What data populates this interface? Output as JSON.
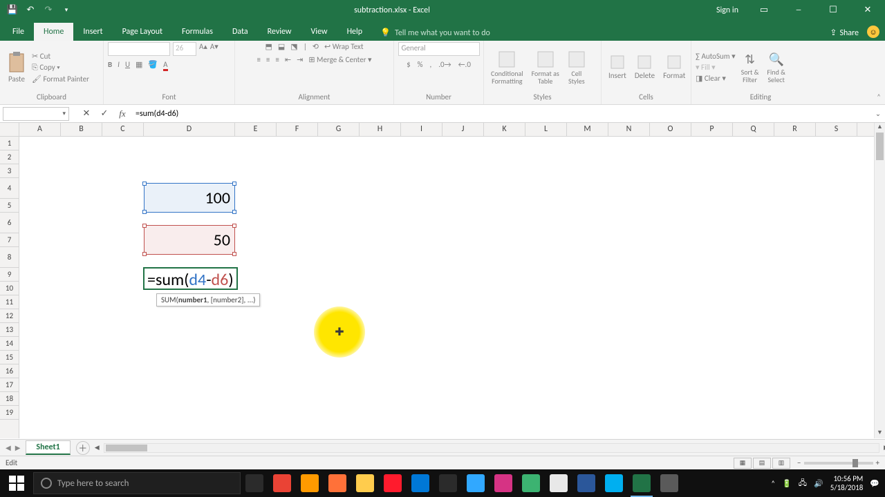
{
  "window": {
    "filename": "subtraction.xlsx",
    "appname": "Excel",
    "signin": "Sign in"
  },
  "ribbon_tabs": {
    "file": "File",
    "items": [
      "Home",
      "Insert",
      "Page Layout",
      "Formulas",
      "Data",
      "Review",
      "View",
      "Help"
    ],
    "active": "Home",
    "tell_me": "Tell me what you want to do",
    "share": "Share"
  },
  "ribbon": {
    "clipboard": {
      "paste": "Paste",
      "cut": "Cut",
      "copy": "Copy",
      "format_painter": "Format Painter",
      "label": "Clipboard"
    },
    "font": {
      "family": "",
      "size": "26",
      "label": "Font"
    },
    "alignment": {
      "wrap": "Wrap Text",
      "merge": "Merge & Center",
      "label": "Alignment"
    },
    "number": {
      "format": "General",
      "label": "Number"
    },
    "styles": {
      "cond": "Conditional Formatting",
      "table": "Format as Table",
      "cell": "Cell Styles",
      "label": "Styles"
    },
    "cells": {
      "insert": "Insert",
      "delete": "Delete",
      "format": "Format",
      "label": "Cells"
    },
    "editing": {
      "autosum": "AutoSum",
      "fill": "Fill",
      "clear": "Clear",
      "sort": "Sort & Filter",
      "find": "Find & Select",
      "label": "Editing"
    }
  },
  "formula_bar": {
    "name_box": "",
    "formula": "=sum(d4-d6)"
  },
  "grid": {
    "columns": [
      "A",
      "B",
      "C",
      "D",
      "E",
      "F",
      "G",
      "H",
      "I",
      "J",
      "K",
      "L",
      "M",
      "N",
      "O",
      "P",
      "Q",
      "R",
      "S"
    ],
    "wide_col": "D",
    "row_count": 19,
    "tall_rows": [
      4,
      6,
      8
    ],
    "d4_value": "100",
    "d6_value": "50",
    "edit_parts": {
      "p1": "=sum(",
      "ref1": "d4",
      "dash": "-",
      "ref2": "d6",
      "p2": ")"
    },
    "tooltip_fn": "SUM(",
    "tooltip_bold": "number1",
    "tooltip_rest": ", [number2], ...)",
    "ref_colors": {
      "d4": "#3173c6",
      "d6": "#c0504d"
    },
    "accent": "#217346"
  },
  "sheet_tabs": {
    "active": "Sheet1"
  },
  "statusbar": {
    "mode": "Edit",
    "zoom": ""
  },
  "taskbar": {
    "search_placeholder": "Type here to search",
    "apps": [
      {
        "name": "task-view",
        "color": "#2b2b2b"
      },
      {
        "name": "chrome",
        "color": "#ea4335"
      },
      {
        "name": "illustrator",
        "color": "#ff9a00"
      },
      {
        "name": "firefox",
        "color": "#ff7139"
      },
      {
        "name": "file-explorer",
        "color": "#ffcc4d"
      },
      {
        "name": "opera",
        "color": "#ff1b2d"
      },
      {
        "name": "edge",
        "color": "#0078d7"
      },
      {
        "name": "store",
        "color": "#2b2b2b"
      },
      {
        "name": "photoshop",
        "color": "#31a8ff"
      },
      {
        "name": "app-pink",
        "color": "#d63384"
      },
      {
        "name": "bittorrent",
        "color": "#3cb371"
      },
      {
        "name": "notepad",
        "color": "#e8e8e8"
      },
      {
        "name": "word",
        "color": "#2b579a"
      },
      {
        "name": "skype",
        "color": "#00aff0"
      },
      {
        "name": "excel",
        "color": "#217346"
      },
      {
        "name": "app-other",
        "color": "#5a5a5a"
      }
    ],
    "time": "10:56 PM",
    "date": "5/18/2018"
  }
}
